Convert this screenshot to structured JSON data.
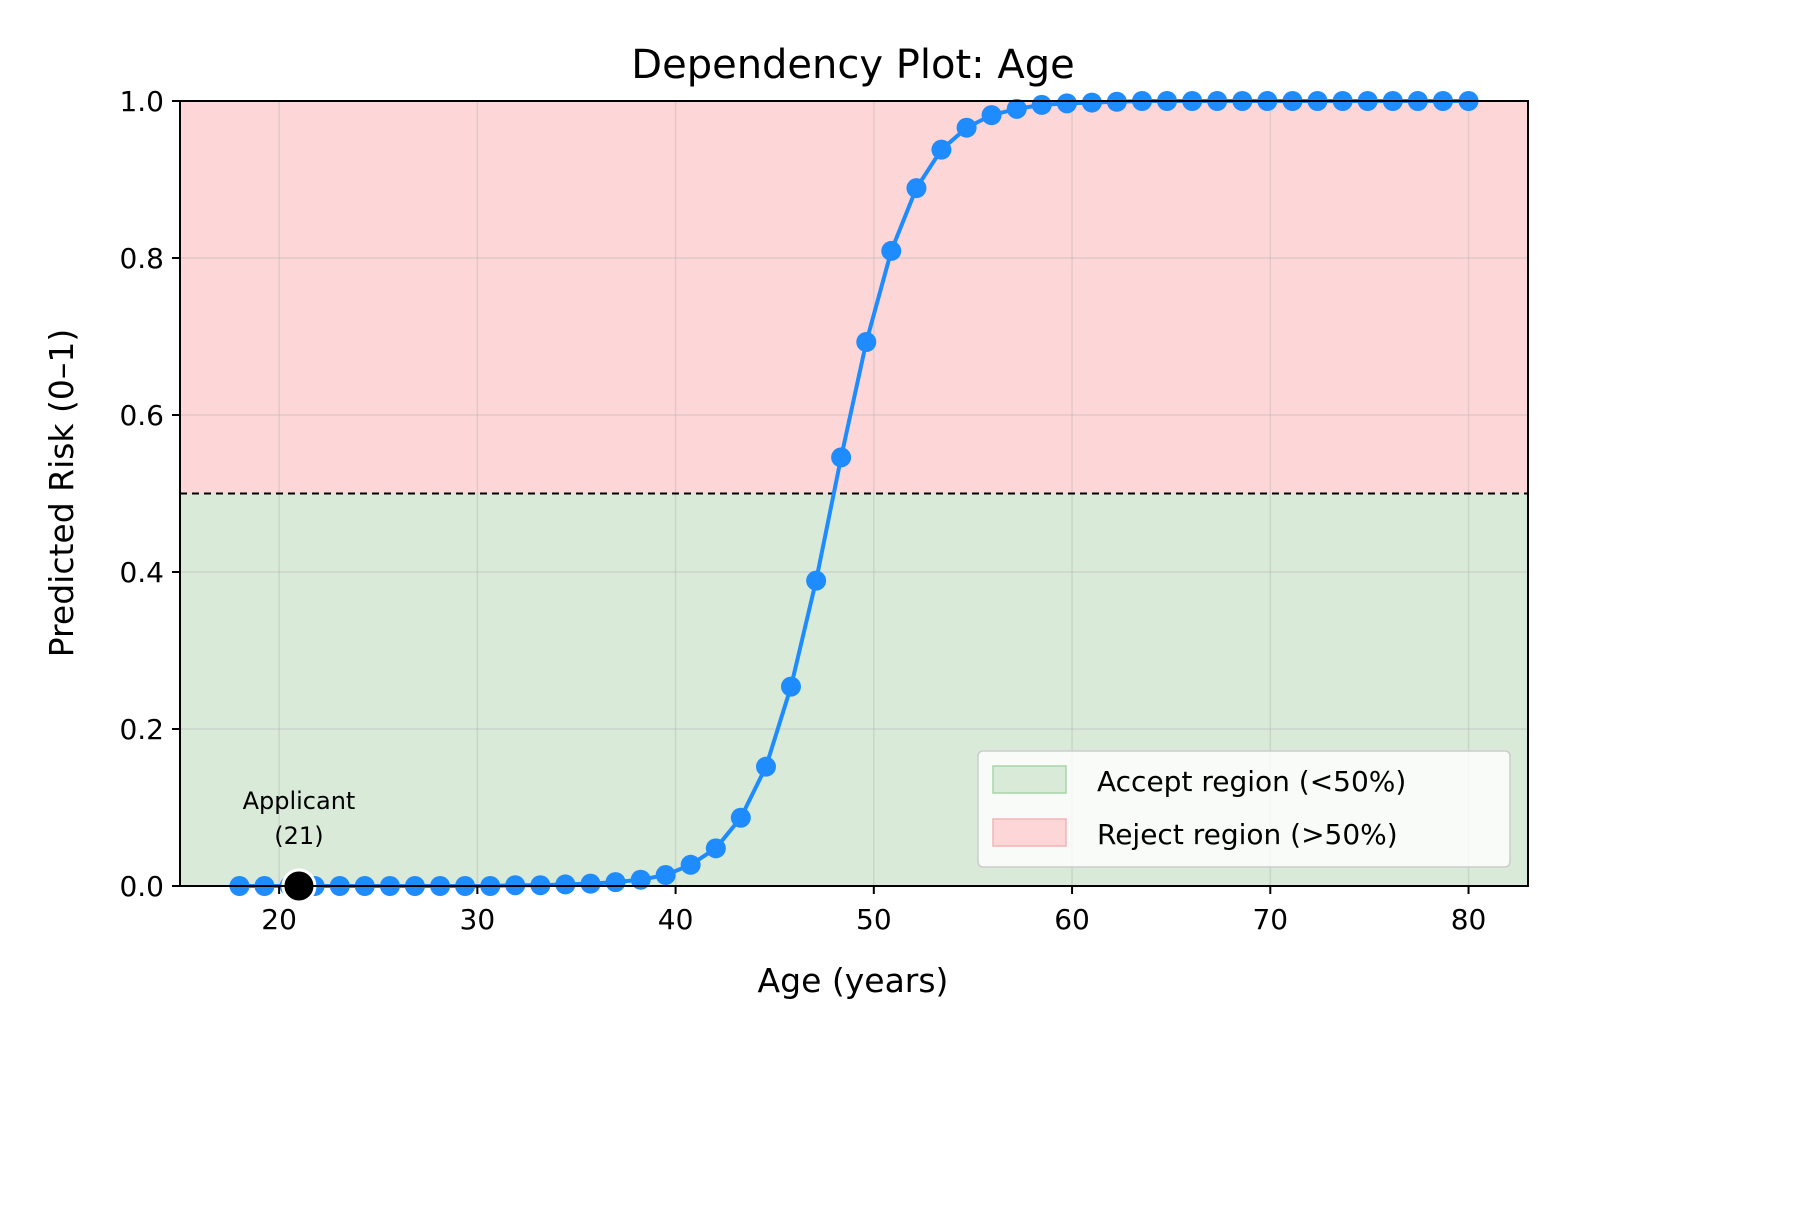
{
  "chart_data": {
    "type": "line",
    "title": "Dependency Plot: Age",
    "xlabel": "Age (years)",
    "ylabel": "Predicted Risk (0–1)",
    "xlim": [
      15,
      83
    ],
    "ylim": [
      0,
      1
    ],
    "x_ticks": [
      20,
      30,
      40,
      50,
      60,
      70,
      80
    ],
    "y_ticks": [
      0.0,
      0.2,
      0.4,
      0.6,
      0.8,
      1.0
    ],
    "grid": true,
    "threshold": 0.5,
    "regions": [
      {
        "name": "Accept region (<50%)",
        "from": 0,
        "to": 0.5,
        "color": "#d9ead9"
      },
      {
        "name": "Reject region (>50%)",
        "from": 0.5,
        "to": 1.0,
        "color": "#fdd7d8"
      }
    ],
    "legend_position": "bottom-right",
    "series": [
      {
        "color": "#1e8cff",
        "x": [
          18.0,
          19.26,
          20.53,
          21.79,
          23.06,
          24.32,
          25.59,
          26.85,
          28.12,
          29.38,
          30.65,
          31.91,
          33.18,
          34.44,
          35.71,
          36.97,
          38.24,
          39.5,
          40.76,
          42.03,
          43.29,
          44.56,
          45.82,
          47.09,
          48.35,
          49.62,
          50.88,
          52.15,
          53.41,
          54.68,
          55.94,
          57.21,
          58.47,
          59.74,
          61.0,
          62.26,
          63.53,
          64.79,
          66.06,
          67.32,
          68.59,
          69.85,
          71.12,
          72.38,
          73.65,
          74.91,
          76.18,
          77.44,
          78.71,
          80.0
        ],
        "y": [
          0.0,
          0.0,
          0.0,
          0.0,
          0.0,
          0.0,
          0.0,
          0.0,
          0.0,
          0.0,
          0.0,
          0.001,
          0.001,
          0.002,
          0.003,
          0.005,
          0.008,
          0.014,
          0.027,
          0.048,
          0.087,
          0.152,
          0.254,
          0.389,
          0.546,
          0.693,
          0.809,
          0.889,
          0.938,
          0.966,
          0.982,
          0.99,
          0.995,
          0.997,
          0.998,
          0.999,
          1.0,
          1.0,
          1.0,
          1.0,
          1.0,
          1.0,
          1.0,
          1.0,
          1.0,
          1.0,
          1.0,
          1.0,
          1.0,
          1.0
        ]
      }
    ],
    "applicant": {
      "x": 21,
      "y": 0.0,
      "label_line1": "Applicant",
      "label_line2": "(21)",
      "color": "#000000"
    }
  }
}
